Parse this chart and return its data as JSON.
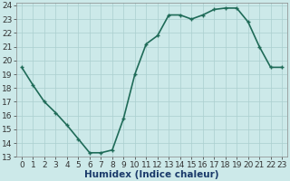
{
  "x": [
    0,
    1,
    2,
    3,
    4,
    5,
    6,
    7,
    8,
    9,
    10,
    11,
    12,
    13,
    14,
    15,
    16,
    17,
    18,
    19,
    20,
    21,
    22,
    23
  ],
  "y": [
    19.5,
    18.2,
    17.0,
    16.2,
    15.3,
    14.3,
    13.3,
    13.3,
    13.5,
    15.8,
    19.0,
    21.2,
    21.8,
    23.3,
    23.3,
    23.0,
    23.3,
    23.7,
    23.8,
    23.8,
    22.8,
    21.0,
    19.5,
    19.5
  ],
  "xlabel": "Humidex (Indice chaleur)",
  "xlim": [
    -0.5,
    23.5
  ],
  "ylim": [
    13,
    24.2
  ],
  "yticks": [
    13,
    14,
    15,
    16,
    17,
    18,
    19,
    20,
    21,
    22,
    23,
    24
  ],
  "xticks": [
    0,
    1,
    2,
    3,
    4,
    5,
    6,
    7,
    8,
    9,
    10,
    11,
    12,
    13,
    14,
    15,
    16,
    17,
    18,
    19,
    20,
    21,
    22,
    23
  ],
  "line_color": "#1f6b58",
  "bg_color": "#cce9e9",
  "grid_color": "#aacfcf",
  "xlabel_color": "#1a3a6a",
  "xlabel_fontsize": 7.5,
  "tick_fontsize": 6.5,
  "line_width": 1.2,
  "marker_size": 3.5
}
